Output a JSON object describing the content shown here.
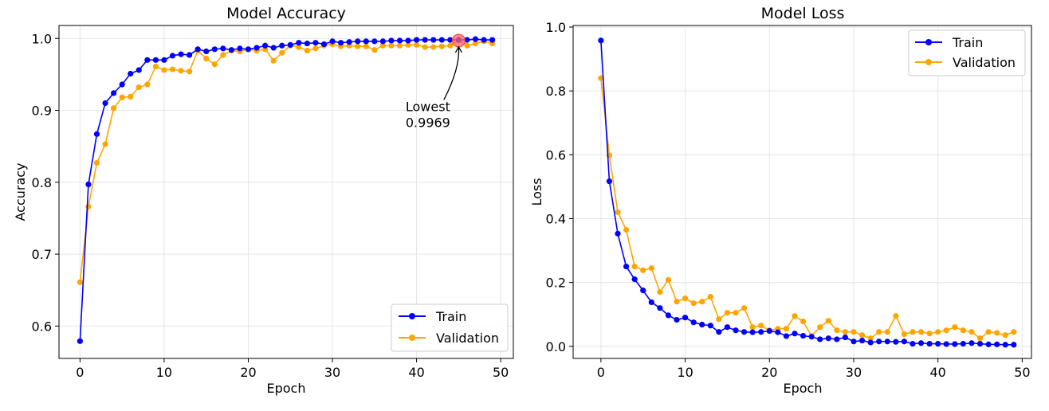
{
  "chart_data": [
    {
      "type": "line",
      "title": "Model Accuracy",
      "xlabel": "Epoch",
      "ylabel": "Accuracy",
      "xlim": [
        -2.5,
        51.5
      ],
      "ylim": [
        0.555,
        1.018
      ],
      "xticks": [
        0,
        10,
        20,
        30,
        40,
        50
      ],
      "yticks": [
        0.6,
        0.7,
        0.8,
        0.9,
        1.0
      ],
      "ytick_labels": [
        "0.6",
        "0.7",
        "0.8",
        "0.9",
        "1.0"
      ],
      "grid": true,
      "legend_position": "bottom-right",
      "x": [
        0,
        1,
        2,
        3,
        4,
        5,
        6,
        7,
        8,
        9,
        10,
        11,
        12,
        13,
        14,
        15,
        16,
        17,
        18,
        19,
        20,
        21,
        22,
        23,
        24,
        25,
        26,
        27,
        28,
        29,
        30,
        31,
        32,
        33,
        34,
        35,
        36,
        37,
        38,
        39,
        40,
        41,
        42,
        43,
        44,
        45,
        46,
        47,
        48,
        49
      ],
      "series": [
        {
          "name": "Train",
          "color": "#0000ff",
          "values": [
            0.579,
            0.797,
            0.867,
            0.91,
            0.924,
            0.936,
            0.951,
            0.956,
            0.97,
            0.97,
            0.97,
            0.976,
            0.978,
            0.977,
            0.985,
            0.982,
            0.985,
            0.986,
            0.984,
            0.986,
            0.985,
            0.987,
            0.99,
            0.987,
            0.99,
            0.991,
            0.994,
            0.993,
            0.994,
            0.992,
            0.996,
            0.994,
            0.995,
            0.996,
            0.996,
            0.996,
            0.996,
            0.997,
            0.997,
            0.997,
            0.998,
            0.998,
            0.998,
            0.998,
            0.998,
            0.998,
            0.998,
            0.999,
            0.998,
            0.998
          ]
        },
        {
          "name": "Validation",
          "color": "#ffa500",
          "values": [
            0.661,
            0.766,
            0.827,
            0.853,
            0.903,
            0.918,
            0.919,
            0.932,
            0.936,
            0.961,
            0.956,
            0.957,
            0.955,
            0.954,
            0.983,
            0.972,
            0.964,
            0.977,
            0.983,
            0.982,
            0.985,
            0.983,
            0.985,
            0.969,
            0.98,
            0.99,
            0.988,
            0.983,
            0.986,
            0.99,
            0.992,
            0.989,
            0.99,
            0.989,
            0.989,
            0.984,
            0.99,
            0.99,
            0.99,
            0.991,
            0.991,
            0.988,
            0.988,
            0.989,
            0.99,
            0.997,
            0.99,
            0.993,
            0.996,
            0.993
          ]
        }
      ],
      "highlight": {
        "x": 45,
        "y": 0.997
      },
      "annotation": {
        "line1": "Lowest",
        "line2": "0.9969",
        "x": 38.7,
        "y": 0.877
      }
    },
    {
      "type": "line",
      "title": "Model Loss",
      "xlabel": "Epoch",
      "ylabel": "Loss",
      "xlim": [
        -3.3,
        51.1
      ],
      "ylim": [
        -0.038,
        1.005
      ],
      "xticks": [
        0,
        10,
        20,
        30,
        40,
        50
      ],
      "yticks": [
        0.0,
        0.2,
        0.4,
        0.6,
        0.8,
        1.0
      ],
      "ytick_labels": [
        "0.0",
        "0.2",
        "0.4",
        "0.6",
        "0.8",
        "1.0"
      ],
      "grid": true,
      "legend_position": "top-right",
      "x": [
        0,
        1,
        2,
        3,
        4,
        5,
        6,
        7,
        8,
        9,
        10,
        11,
        12,
        13,
        14,
        15,
        16,
        17,
        18,
        19,
        20,
        21,
        22,
        23,
        24,
        25,
        26,
        27,
        28,
        29,
        30,
        31,
        32,
        33,
        34,
        35,
        36,
        37,
        38,
        39,
        40,
        41,
        42,
        43,
        44,
        45,
        46,
        47,
        48,
        49
      ],
      "series": [
        {
          "name": "Train",
          "color": "#0000ff",
          "values": [
            0.958,
            0.517,
            0.353,
            0.25,
            0.21,
            0.175,
            0.138,
            0.12,
            0.097,
            0.083,
            0.09,
            0.075,
            0.068,
            0.065,
            0.045,
            0.06,
            0.05,
            0.045,
            0.044,
            0.045,
            0.048,
            0.044,
            0.032,
            0.04,
            0.033,
            0.03,
            0.022,
            0.025,
            0.022,
            0.028,
            0.015,
            0.018,
            0.012,
            0.015,
            0.015,
            0.014,
            0.015,
            0.008,
            0.01,
            0.008,
            0.008,
            0.007,
            0.007,
            0.008,
            0.01,
            0.008,
            0.006,
            0.006,
            0.005,
            0.005
          ]
        },
        {
          "name": "Validation",
          "color": "#ffa500",
          "values": [
            0.84,
            0.598,
            0.42,
            0.365,
            0.25,
            0.238,
            0.245,
            0.17,
            0.208,
            0.14,
            0.15,
            0.135,
            0.14,
            0.155,
            0.085,
            0.105,
            0.105,
            0.12,
            0.06,
            0.065,
            0.05,
            0.055,
            0.055,
            0.095,
            0.078,
            0.032,
            0.06,
            0.08,
            0.05,
            0.045,
            0.045,
            0.035,
            0.025,
            0.045,
            0.045,
            0.095,
            0.038,
            0.045,
            0.045,
            0.04,
            0.045,
            0.05,
            0.06,
            0.05,
            0.045,
            0.025,
            0.045,
            0.042,
            0.035,
            0.045
          ]
        }
      ]
    }
  ]
}
